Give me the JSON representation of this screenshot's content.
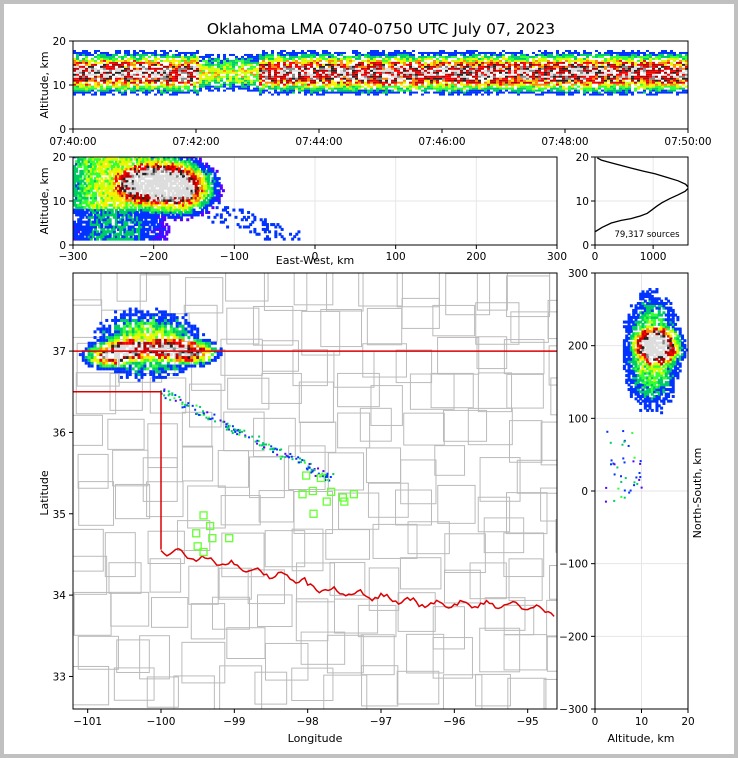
{
  "figure": {
    "title": "Oklahoma LMA 0740-0750 UTC July 07, 2023"
  },
  "colors": {
    "density_scale": [
      "#5a00ff",
      "#0033ff",
      "#00cc66",
      "#33ff33",
      "#ccff00",
      "#ffee00",
      "#ff8800",
      "#ff0000",
      "#cc0000",
      "#aa0000",
      "#222222",
      "#888888",
      "#dddddd",
      "#ffffff"
    ],
    "state_border": "#dd0000",
    "county_lines": "#bbbbbb",
    "network_stations": "#66ff33"
  },
  "chart_data": [
    {
      "id": "time_height",
      "type": "heatmap",
      "xlabel": "",
      "ylabel": "Altitude, km",
      "xlim": [
        "07:40:00",
        "07:50:00"
      ],
      "ylim": [
        0,
        20
      ],
      "x_ticks": [
        "07:40:00",
        "07:42:00",
        "07:44:00",
        "07:46:00",
        "07:48:00",
        "07:50:00"
      ],
      "y_ticks": [
        "0",
        "10",
        "20"
      ]
    },
    {
      "id": "ew_altitude",
      "type": "heatmap",
      "xlabel": "East-West, km",
      "ylabel": "Altitude, km",
      "xlim": [
        -300,
        300
      ],
      "ylim": [
        0,
        20
      ],
      "x_ticks": [
        "−300",
        "−200",
        "−100",
        "0",
        "100",
        "200",
        "300"
      ],
      "y_ticks": [
        "0",
        "10",
        "20"
      ]
    },
    {
      "id": "altitude_histogram",
      "type": "line",
      "xlabel": "",
      "ylabel": "",
      "xlim": [
        0,
        1600
      ],
      "ylim": [
        0,
        20
      ],
      "x_ticks": [
        "0",
        "1000"
      ],
      "y_ticks": [
        "0",
        "10",
        "20"
      ],
      "annotation": "79,317 sources",
      "series": [
        {
          "x": [
            0,
            120,
            280,
            450,
            620,
            780,
            900,
            980,
            1060,
            1150,
            1280,
            1430,
            1550,
            1610,
            1560,
            1430,
            1230,
            1030,
            830,
            640,
            470,
            330,
            210,
            110,
            40
          ],
          "y": [
            3,
            4,
            5,
            5.6,
            6,
            6.6,
            7.2,
            8,
            8.8,
            9.6,
            10.5,
            11.4,
            12.2,
            13,
            13.8,
            14.6,
            15.4,
            16.2,
            16.8,
            17.4,
            18,
            18.5,
            18.9,
            19.3,
            19.8
          ]
        }
      ]
    },
    {
      "id": "plan_view",
      "type": "heatmap",
      "xlabel": "Longitude",
      "ylabel": "Latitude",
      "xlim": [
        -101.2,
        -94.6
      ],
      "ylim": [
        32.6,
        37.96
      ],
      "x_ticks": [
        "−101",
        "−100",
        "−99",
        "−98",
        "−97",
        "−96",
        "−95"
      ],
      "y_ticks": [
        "33",
        "34",
        "35",
        "36",
        "37"
      ],
      "stations": [
        {
          "lon": -99.42,
          "lat": 34.98
        },
        {
          "lon": -99.33,
          "lat": 34.85
        },
        {
          "lon": -99.52,
          "lat": 34.76
        },
        {
          "lon": -99.3,
          "lat": 34.7
        },
        {
          "lon": -99.07,
          "lat": 34.7
        },
        {
          "lon": -99.5,
          "lat": 34.6
        },
        {
          "lon": -99.42,
          "lat": 34.53
        },
        {
          "lon": -98.02,
          "lat": 35.47
        },
        {
          "lon": -97.82,
          "lat": 35.44
        },
        {
          "lon": -98.07,
          "lat": 35.24
        },
        {
          "lon": -97.93,
          "lat": 35.28
        },
        {
          "lon": -97.68,
          "lat": 35.27
        },
        {
          "lon": -97.37,
          "lat": 35.24
        },
        {
          "lon": -97.52,
          "lat": 35.2
        },
        {
          "lon": -97.74,
          "lat": 35.15
        },
        {
          "lon": -97.5,
          "lat": 35.15
        },
        {
          "lon": -97.92,
          "lat": 35.0
        }
      ]
    },
    {
      "id": "ns_altitude",
      "type": "heatmap",
      "xlabel": "Altitude, km",
      "ylabel": "North-South, km",
      "xlim": [
        0,
        20
      ],
      "ylim": [
        -300,
        300
      ],
      "x_ticks": [
        "0",
        "10",
        "20"
      ],
      "y_ticks": [
        "−300",
        "−200",
        "−100",
        "0",
        "100",
        "200",
        "300"
      ]
    }
  ]
}
